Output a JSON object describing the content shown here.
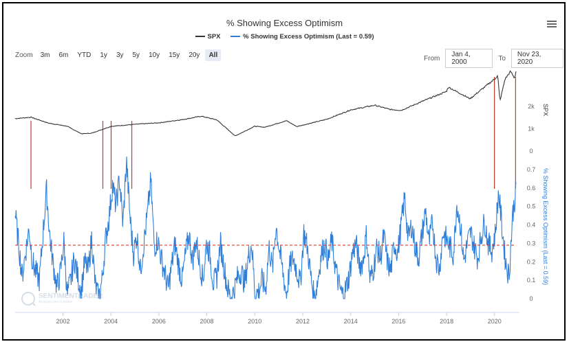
{
  "header": {
    "title": "% Showing Excess Optimism",
    "legend_spx": "SPX",
    "legend_opt": "% Showing Excess Optimism (Last = 0.59)"
  },
  "toolbar": {
    "zoom_label": "Zoom",
    "zoom_buttons": [
      "3m",
      "6m",
      "YTD",
      "1y",
      "3y",
      "5y",
      "10y",
      "15y",
      "20y",
      "All"
    ],
    "from_label": "From",
    "from_value": "Jan 4, 2000",
    "to_label": "To",
    "to_value": "Nov 23, 2020"
  },
  "watermark": {
    "text": "SENTIMENTRADER",
    "sub": "Analysis over Emotion"
  },
  "colors": {
    "spx": "#333333",
    "optimism": "#2f7ed8",
    "marker": "#c0392b",
    "threshold": "#e0332e"
  },
  "chart_data": [
    {
      "type": "line",
      "series": [
        {
          "name": "SPX"
        }
      ],
      "x": [
        "2000-01-04",
        "2000-09-01",
        "2001-06-01",
        "2002-03-01",
        "2002-10-09",
        "2003-03-11",
        "2004-01-02",
        "2005-01-03",
        "2006-01-03",
        "2007-01-03",
        "2007-10-09",
        "2008-06-02",
        "2009-03-09",
        "2009-12-31",
        "2010-06-01",
        "2011-04-29",
        "2011-10-03",
        "2012-12-31",
        "2013-12-31",
        "2014-12-31",
        "2015-08-25",
        "2016-02-11",
        "2016-12-30",
        "2017-12-29",
        "2018-01-26",
        "2018-12-24",
        "2019-12-31",
        "2020-02-19",
        "2020-03-23",
        "2020-06-08",
        "2020-09-02",
        "2020-10-30",
        "2020-11-23"
      ],
      "values": [
        1455,
        1520,
        1250,
        1120,
        777,
        800,
        1108,
        1202,
        1268,
        1416,
        1565,
        1400,
        677,
        1115,
        1070,
        1363,
        1099,
        1426,
        1848,
        2058,
        1868,
        1829,
        2238,
        2673,
        2872,
        2351,
        3230,
        3386,
        2237,
        3232,
        3580,
        3270,
        3577
      ],
      "ylabel": "SPX",
      "ylim": [
        0,
        3700
      ],
      "yticks": [
        "0",
        "1k",
        "2k"
      ]
    },
    {
      "type": "line",
      "series": [
        {
          "name": "% Showing Excess Optimism (Last = 0.59)"
        }
      ],
      "x_start": "2000-01-04",
      "x_end": "2020-11-23",
      "values": [
        0.46,
        0.3,
        0.12,
        0.25,
        0.38,
        0.2,
        0.14,
        0.1,
        0.35,
        0.59,
        0.33,
        0.18,
        0.06,
        0.14,
        0.31,
        0.02,
        0.1,
        0.22,
        0.12,
        0.04,
        0.2,
        0.15,
        0.33,
        0.08,
        0.0,
        0.1,
        0.32,
        0.44,
        0.62,
        0.5,
        0.65,
        0.4,
        0.75,
        0.45,
        0.24,
        0.35,
        0.15,
        0.3,
        0.45,
        0.64,
        0.28,
        0.32,
        0.22,
        0.14,
        0.05,
        0.18,
        0.3,
        0.18,
        0.1,
        0.24,
        0.35,
        0.2,
        0.32,
        0.2,
        0.1,
        0.3,
        0.24,
        0.08,
        0.12,
        0.3,
        0.18,
        0.06,
        0.0,
        0.05,
        0.12,
        0.15,
        0.08,
        0.22,
        0.3,
        0.02,
        0.04,
        0.1,
        0.05,
        0.28,
        0.16,
        0.4,
        0.26,
        0.14,
        0.02,
        0.18,
        0.22,
        0.15,
        0.08,
        0.36,
        0.28,
        0.12,
        0.0,
        0.1,
        0.24,
        0.3,
        0.2,
        0.32,
        0.18,
        0.08,
        0.02,
        0.05,
        0.12,
        0.25,
        0.3,
        0.18,
        0.2,
        0.35,
        0.1,
        0.16,
        0.28,
        0.22,
        0.34,
        0.2,
        0.15,
        0.3,
        0.25,
        0.4,
        0.55,
        0.32,
        0.4,
        0.28,
        0.22,
        0.35,
        0.48,
        0.3,
        0.42,
        0.22,
        0.16,
        0.36,
        0.32,
        0.28,
        0.24,
        0.52,
        0.4,
        0.2,
        0.3,
        0.36,
        0.28,
        0.22,
        0.34,
        0.42,
        0.3,
        0.26,
        0.35,
        0.58,
        0.38,
        0.2,
        0.12,
        0.45,
        0.59
      ],
      "ylabel": "% Showing Excess Optimism (Last = 0.59)",
      "ylim": [
        0,
        0.8
      ],
      "yticks": [
        "0",
        "0.1",
        "0.2",
        "0.3",
        "0.4",
        "0.5",
        "0.6",
        "0.7"
      ],
      "threshold": 0.29
    }
  ],
  "x_axis": {
    "ticks": [
      "2002",
      "2004",
      "2006",
      "2008",
      "2010",
      "2012",
      "2014",
      "2016",
      "2018",
      "2020"
    ]
  },
  "signal_dates": [
    "2000-09-01",
    "2003-09-01",
    "2004-01-05",
    "2004-11-15",
    "2019-12-30",
    "2020-11-16"
  ]
}
